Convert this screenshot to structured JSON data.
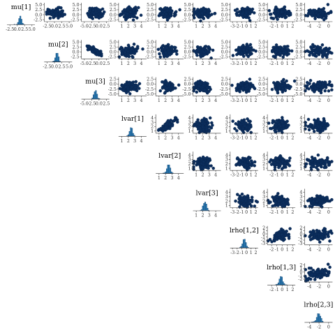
{
  "chart_data": {
    "type": "scatter",
    "layout": "pairs-matrix-upper",
    "variables": [
      {
        "label": "mu[1]",
        "ticks": [
          -2.5,
          0.0,
          2.5,
          5.0
        ],
        "tick_labels": [
          "-2.5",
          "0.0",
          "2.5",
          "5.0"
        ],
        "range": [
          -3.5,
          6.0
        ],
        "center": 0.8,
        "spread": 0.9
      },
      {
        "label": "mu[2]",
        "ticks": [
          -2.5,
          0.0,
          2.5,
          5.0
        ],
        "tick_labels": [
          "-2.5",
          "0.0",
          "2.5",
          "5.0"
        ],
        "range": [
          -3.5,
          6.0
        ],
        "center": 0.5,
        "spread": 0.9
      },
      {
        "label": "mu[3]",
        "ticks": [
          -5.0,
          -2.5,
          0.0,
          2.5
        ],
        "tick_labels": [
          "-5.0",
          "-2.5",
          "0.0",
          "2.5"
        ],
        "range": [
          -6.0,
          3.5
        ],
        "center": -1.2,
        "spread": 0.9
      },
      {
        "label": "lvar[1]",
        "ticks": [
          1,
          2,
          3,
          4
        ],
        "tick_labels": [
          "1",
          "2",
          "3",
          "4"
        ],
        "range": [
          0.5,
          4.8
        ],
        "center": 2.2,
        "spread": 0.45
      },
      {
        "label": "lvar[2]",
        "ticks": [
          1,
          2,
          3,
          4
        ],
        "tick_labels": [
          "1",
          "2",
          "3",
          "4"
        ],
        "range": [
          0.5,
          4.8
        ],
        "center": 2.3,
        "spread": 0.45
      },
      {
        "label": "lvar[3]",
        "ticks": [
          1,
          2,
          3,
          4
        ],
        "tick_labels": [
          "1",
          "2",
          "3",
          "4"
        ],
        "range": [
          0.5,
          4.8
        ],
        "center": 2.0,
        "spread": 0.45
      },
      {
        "label": "lrho[1,2]",
        "ticks": [
          -3,
          -2,
          -1,
          0,
          1,
          2
        ],
        "tick_labels": [
          "-3",
          "-2",
          "-1",
          "0",
          "1",
          "2"
        ],
        "range": [
          -3.5,
          2.5
        ],
        "center": -0.4,
        "spread": 0.6
      },
      {
        "label": "lrho[1,3]",
        "ticks": [
          -2,
          -1,
          0,
          1,
          2
        ],
        "tick_labels": [
          "-2",
          "-1",
          "0",
          "1",
          "2"
        ],
        "range": [
          -2.8,
          2.5
        ],
        "center": -0.3,
        "spread": 0.6
      },
      {
        "label": "lrho[2,3]",
        "ticks": [
          -4,
          -2,
          0
        ],
        "tick_labels": [
          "-4",
          "-2",
          "0"
        ],
        "range": [
          -5.0,
          0.8
        ],
        "center": -2.0,
        "spread": 0.8
      }
    ],
    "correlations": [
      [
        0,
        1,
        -0.15
      ],
      [
        0,
        2,
        -0.15
      ],
      [
        0,
        3,
        0.1
      ],
      [
        1,
        2,
        -0.85
      ],
      [
        1,
        3,
        0.1
      ],
      [
        3,
        4,
        0.75
      ],
      [
        6,
        7,
        0.55
      ],
      [
        7,
        8,
        0.3
      ],
      [
        6,
        8,
        0.2
      ],
      [
        5,
        6,
        -0.2
      ]
    ],
    "histogram_bins": 12,
    "points_per_panel": 90,
    "colors": {
      "points": "#0b2d5c",
      "bars": "#2c7fb8",
      "bar_edge": "#0b3c6b",
      "axis": "#333333"
    },
    "grid": false
  }
}
